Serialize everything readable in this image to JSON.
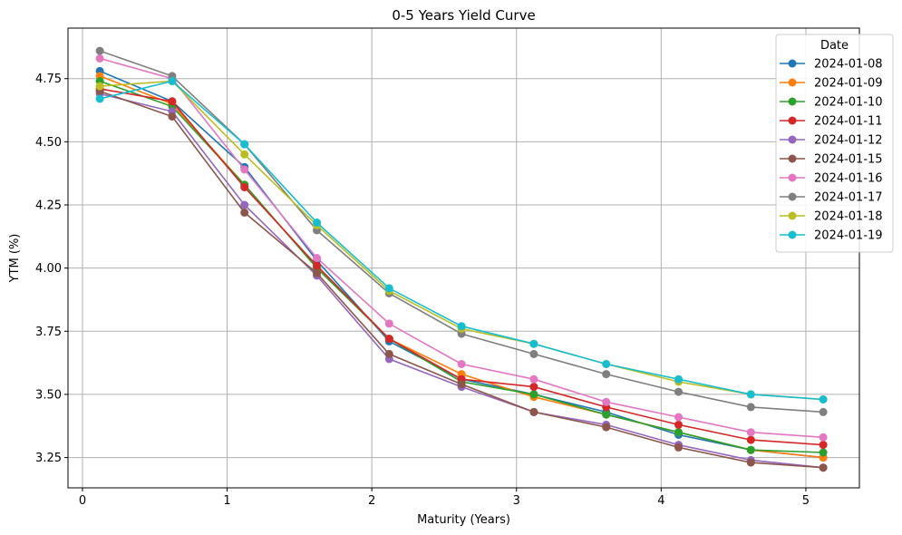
{
  "chart_data": {
    "type": "line",
    "title": "0-5 Years Yield Curve",
    "xlabel": "Maturity (Years)",
    "ylabel": "YTM (%)",
    "xlim": [
      -0.1,
      5.37
    ],
    "ylim": [
      3.13,
      4.95
    ],
    "xticks": [
      0,
      1,
      2,
      3,
      4,
      5
    ],
    "xtick_labels": [
      "0",
      "1",
      "2",
      "3",
      "4",
      "5"
    ],
    "yticks": [
      3.25,
      3.5,
      3.75,
      4.0,
      4.25,
      4.5,
      4.75
    ],
    "ytick_labels": [
      "3.25",
      "3.50",
      "3.75",
      "4.00",
      "4.25",
      "4.50",
      "4.75"
    ],
    "grid": true,
    "legend_title": "Date",
    "legend_position": "top-right",
    "x": [
      0.12,
      0.62,
      1.12,
      1.62,
      2.12,
      2.62,
      3.12,
      3.62,
      4.12,
      4.62,
      5.12
    ],
    "series": [
      {
        "name": "2024-01-08",
        "color": "#1f77b4",
        "values": [
          4.78,
          4.66,
          4.4,
          4.03,
          3.71,
          3.56,
          3.5,
          3.43,
          3.34,
          3.28,
          3.25
        ]
      },
      {
        "name": "2024-01-09",
        "color": "#ff7f0e",
        "values": [
          4.76,
          4.65,
          4.33,
          4.0,
          3.72,
          3.58,
          3.49,
          3.42,
          3.35,
          3.28,
          3.25
        ]
      },
      {
        "name": "2024-01-10",
        "color": "#2ca02c",
        "values": [
          4.74,
          4.64,
          4.33,
          4.0,
          3.72,
          3.55,
          3.5,
          3.42,
          3.35,
          3.28,
          3.27
        ]
      },
      {
        "name": "2024-01-11",
        "color": "#d62728",
        "values": [
          4.71,
          4.66,
          4.32,
          4.01,
          3.72,
          3.56,
          3.53,
          3.45,
          3.38,
          3.32,
          3.3
        ]
      },
      {
        "name": "2024-01-12",
        "color": "#9467bd",
        "values": [
          4.69,
          4.62,
          4.25,
          3.97,
          3.64,
          3.53,
          3.43,
          3.38,
          3.3,
          3.24,
          3.21
        ]
      },
      {
        "name": "2024-01-15",
        "color": "#8c564b",
        "values": [
          4.7,
          4.6,
          4.22,
          3.98,
          3.66,
          3.54,
          3.43,
          3.37,
          3.29,
          3.23,
          3.21
        ]
      },
      {
        "name": "2024-01-16",
        "color": "#e377c2",
        "values": [
          4.83,
          4.75,
          4.39,
          4.04,
          3.78,
          3.62,
          3.56,
          3.47,
          3.41,
          3.35,
          3.33
        ]
      },
      {
        "name": "2024-01-17",
        "color": "#7f7f7f",
        "values": [
          4.86,
          4.76,
          4.49,
          4.15,
          3.9,
          3.74,
          3.66,
          3.58,
          3.51,
          3.45,
          3.43
        ]
      },
      {
        "name": "2024-01-18",
        "color": "#bcbd22",
        "values": [
          4.72,
          4.74,
          4.45,
          4.17,
          3.91,
          3.76,
          3.7,
          3.62,
          3.55,
          3.5,
          3.48
        ]
      },
      {
        "name": "2024-01-19",
        "color": "#17becf",
        "values": [
          4.67,
          4.74,
          4.49,
          4.18,
          3.92,
          3.77,
          3.7,
          3.62,
          3.56,
          3.5,
          3.48
        ]
      }
    ]
  }
}
